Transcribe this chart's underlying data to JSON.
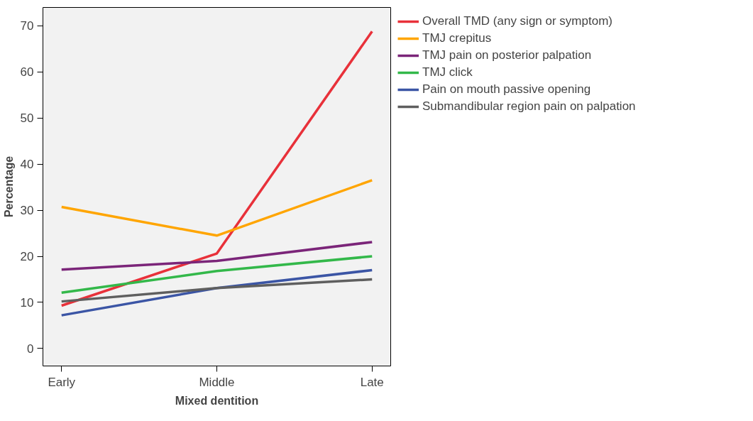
{
  "chart_data": {
    "type": "line",
    "xlabel": "Mixed dentition",
    "ylabel": "Percentage",
    "categories": [
      "Early",
      "Middle",
      "Late"
    ],
    "ylim": [
      -3.8,
      74
    ],
    "yticks": [
      0,
      10,
      20,
      30,
      40,
      50,
      60,
      70
    ],
    "grid": false,
    "legend": "right",
    "series": [
      {
        "name": "Overall TMD (any sign or symptom)",
        "color": "#e8313a",
        "values": [
          9.3,
          20.6,
          68.8
        ]
      },
      {
        "name": "TMJ crepitus",
        "color": "#ffa500",
        "values": [
          30.7,
          24.5,
          36.5
        ]
      },
      {
        "name": "TMJ pain on posterior palpation",
        "color": "#7b2579",
        "values": [
          17.1,
          19.0,
          23.1
        ]
      },
      {
        "name": "TMJ click",
        "color": "#33b84a",
        "values": [
          12.1,
          16.8,
          20.0
        ]
      },
      {
        "name": "Pain on mouth passive opening",
        "color": "#3b55a5",
        "values": [
          7.2,
          13.1,
          17.0
        ]
      },
      {
        "name": "Submandibular region pain on palpation",
        "color": "#5f5f5f",
        "values": [
          10.2,
          13.1,
          15.0
        ]
      }
    ]
  }
}
